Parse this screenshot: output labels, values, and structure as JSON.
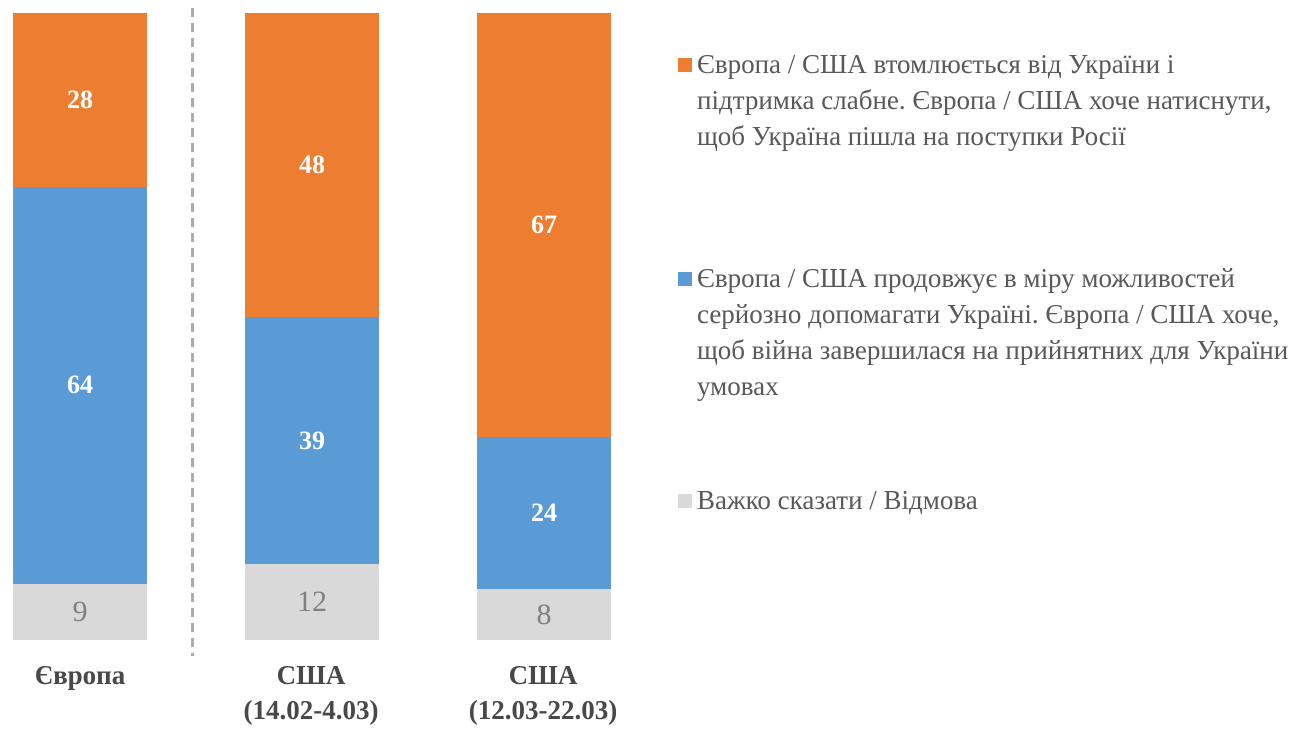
{
  "chart_data": {
    "type": "bar",
    "variant": "stacked-column",
    "orientation": "vertical",
    "categories": [
      "Європа",
      "США\n(14.02-4.03)",
      "США\n(12.03-22.03)"
    ],
    "series": [
      {
        "name": "Європа / США втомлюється від України і підтримка слабне. Європа / США хоче натиснути, щоб Україна пішла на поступки Росії",
        "color": "#ED7D31",
        "label_color": "#FFFFFF",
        "values": [
          28,
          48,
          67
        ]
      },
      {
        "name": "Європа / США продовжує в міру можливостей серйозно допомагати Україні. Європа / США хоче, щоб війна завершилася на прийнятних для України умовах",
        "color": "#5B9BD5",
        "label_color": "#FFFFFF",
        "values": [
          64,
          39,
          24
        ]
      },
      {
        "name": "Важко сказати / Відмова",
        "color": "#D9D9D9",
        "label_color": "#808080",
        "values": [
          9,
          12,
          8
        ]
      }
    ],
    "title": "",
    "xlabel": "",
    "ylabel": "",
    "ylim": [
      0,
      101
    ],
    "grid": false,
    "axes_hidden": true,
    "value_labels": true,
    "legend_position": "right"
  },
  "divider": {
    "style": "dashed",
    "color": "#ABABAB"
  },
  "text_colors": {
    "category_label": "#484848",
    "legend_text": "#595959"
  }
}
